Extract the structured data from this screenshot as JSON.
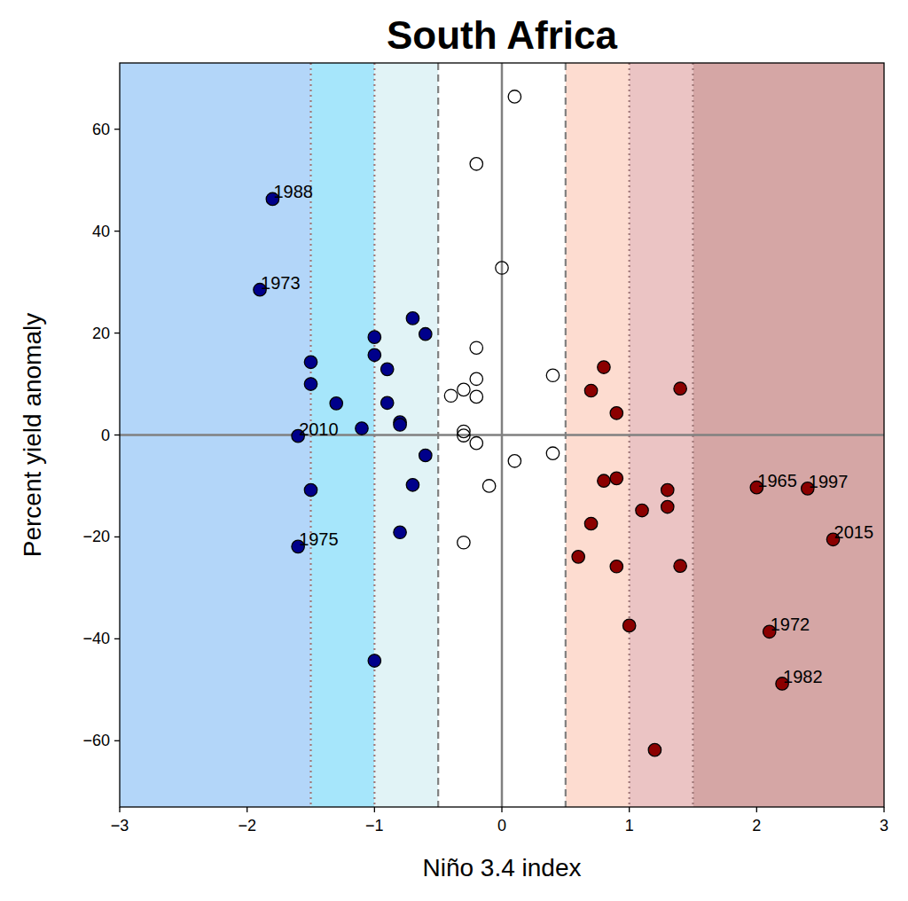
{
  "chart_data": {
    "type": "scatter",
    "title": "South Africa",
    "x_label": "Niño 3.4 index",
    "y_label": "Percent yield anomaly",
    "xlim": [
      -3,
      3
    ],
    "ylim": [
      -73,
      73
    ],
    "xticks": [
      {
        "value": -3,
        "label": "−3"
      },
      {
        "value": -2,
        "label": "−2"
      },
      {
        "value": -1,
        "label": "−1"
      },
      0,
      1,
      2,
      3
    ],
    "yticks": [
      {
        "value": -60,
        "label": "−60"
      },
      {
        "value": -40,
        "label": "−40"
      },
      {
        "value": -20,
        "label": "−20"
      },
      0,
      20,
      40,
      60
    ],
    "grid": false,
    "bands": [
      {
        "from": -3,
        "to": -1.5,
        "color": "#b3d6f9"
      },
      {
        "from": -1.5,
        "to": -1,
        "color": "#a6e6fb"
      },
      {
        "from": -1,
        "to": -0.5,
        "color": "#e1f3f6"
      },
      {
        "from": 0.5,
        "to": 1,
        "color": "#fddcd0"
      },
      {
        "from": 1,
        "to": 1.5,
        "color": "#ebc4c4"
      },
      {
        "from": 1.5,
        "to": 3,
        "color": "#d5a6a5"
      }
    ],
    "x_lines": [
      {
        "value": -1.5,
        "line_style": "dotted"
      },
      {
        "value": -1,
        "line_style": "dotted"
      },
      {
        "value": -0.5,
        "line_style": "dashed"
      },
      {
        "value": 0,
        "line_style": "solid"
      },
      {
        "value": 0.5,
        "line_style": "dashed"
      },
      {
        "value": 1,
        "line_style": "dotted"
      },
      {
        "value": 1.5,
        "line_style": "dotted"
      }
    ],
    "y_lines": [
      {
        "value": 0,
        "line_style": "solid"
      }
    ],
    "series": [
      {
        "color": "#00008b",
        "marker": "filled",
        "x": [
          -1.8,
          -1.9,
          -1.5,
          -1.5,
          -1.3,
          -1.6,
          -1.1,
          -1.5,
          -1.6,
          -1.0,
          -1.0,
          -0.9,
          -0.9,
          -0.8,
          -0.8,
          -0.7,
          -0.6,
          -0.6,
          -0.7,
          -0.8,
          -1.0
        ],
        "values": [
          46.3,
          28.5,
          14.3,
          10.0,
          6.2,
          -0.2,
          1.3,
          -10.8,
          -21.9,
          19.2,
          15.7,
          12.9,
          6.3,
          2.5,
          2.0,
          22.9,
          19.8,
          -4.0,
          -9.8,
          -19.1,
          -44.3
        ],
        "labels": [
          "1988",
          "1973",
          null,
          null,
          null,
          "2010",
          null,
          null,
          "1975",
          null,
          null,
          null,
          null,
          null,
          null,
          null,
          null,
          null,
          null,
          null,
          null
        ]
      },
      {
        "color": "#000000",
        "marker": "open",
        "x": [
          0.1,
          -0.2,
          0.0,
          -0.2,
          -0.2,
          -0.3,
          -0.4,
          -0.2,
          0.4,
          -0.3,
          -0.3,
          -0.2,
          0.1,
          0.4,
          -0.1,
          -0.3
        ],
        "values": [
          66.4,
          53.2,
          32.8,
          17.1,
          11.0,
          8.9,
          7.7,
          7.5,
          11.7,
          0.7,
          -0.1,
          -1.6,
          -5.1,
          -3.6,
          -10.0,
          -21.1
        ]
      },
      {
        "color": "#8b0000",
        "marker": "filled",
        "x": [
          0.8,
          0.7,
          0.9,
          1.4,
          0.8,
          0.9,
          1.3,
          1.3,
          1.1,
          0.7,
          0.6,
          0.9,
          1.4,
          1.0,
          1.2,
          2.0,
          2.4,
          2.6,
          2.1,
          2.2
        ],
        "values": [
          13.3,
          8.7,
          4.3,
          9.1,
          -9.0,
          -8.5,
          -10.8,
          -14.1,
          -14.8,
          -17.4,
          -23.9,
          -25.8,
          -25.7,
          -37.4,
          -61.8,
          -10.3,
          -10.5,
          -20.5,
          -38.6,
          -48.8
        ],
        "labels": [
          null,
          null,
          null,
          null,
          null,
          null,
          null,
          null,
          null,
          null,
          null,
          null,
          null,
          null,
          null,
          "1965",
          "1997",
          "2015",
          "1972",
          "1982"
        ]
      }
    ]
  }
}
